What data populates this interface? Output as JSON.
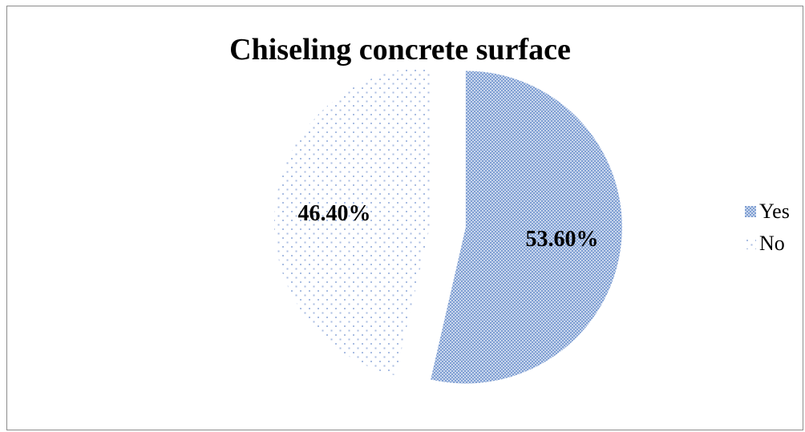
{
  "chart_data": {
    "type": "pie",
    "title": "Chiseling concrete surface",
    "categories": [
      "Yes",
      "No"
    ],
    "values": [
      53.6,
      46.4
    ],
    "data_labels": [
      "53.60%",
      "46.40%"
    ],
    "colors": [
      "#7f9fd3",
      "#7f9fd3"
    ],
    "fill_patterns": [
      "checker",
      "dots"
    ],
    "legend_position": "right",
    "grid": false
  }
}
